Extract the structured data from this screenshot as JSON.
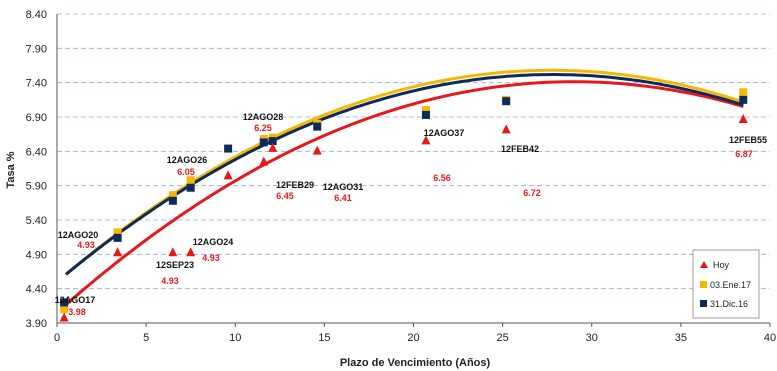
{
  "colors": {
    "hoy": "#e8181a",
    "ene17": "#f5b800",
    "dic16": "#0d2a5c",
    "grid": "#9aa6d6"
  },
  "chart_data": {
    "type": "scatter",
    "title": "",
    "xlabel": "Plazo de Vencimiento  (Años)",
    "ylabel": "Tasa %",
    "xlim": [
      0,
      40
    ],
    "ylim": [
      3.9,
      8.4
    ],
    "xticks": [
      0,
      5,
      10,
      15,
      20,
      25,
      30,
      35,
      40
    ],
    "yticks": [
      "3.90",
      "4.40",
      "4.90",
      "5.40",
      "5.90",
      "6.40",
      "6.90",
      "7.40",
      "7.90",
      "8.40"
    ],
    "grid": "horizontal dashed",
    "legend_position": "bottom-right",
    "series": [
      {
        "name": "Hoy",
        "marker": "triangle",
        "color": "#e8181a",
        "points": [
          {
            "x": 0.4,
            "y": 3.98
          },
          {
            "x": 3.4,
            "y": 4.93
          },
          {
            "x": 6.5,
            "y": 4.93
          },
          {
            "x": 7.5,
            "y": 4.93
          },
          {
            "x": 9.6,
            "y": 6.05
          },
          {
            "x": 11.6,
            "y": 6.25
          },
          {
            "x": 12.1,
            "y": 6.45
          },
          {
            "x": 14.6,
            "y": 6.41
          },
          {
            "x": 20.7,
            "y": 6.56
          },
          {
            "x": 25.2,
            "y": 6.72
          },
          {
            "x": 38.5,
            "y": 6.87
          }
        ],
        "trend": [
          4.05,
          0.232,
          -0.004
        ]
      },
      {
        "name": "03.Ene.17",
        "marker": "square",
        "color": "#f5b800",
        "points": [
          {
            "x": 0.4,
            "y": 4.1
          },
          {
            "x": 3.4,
            "y": 5.22
          },
          {
            "x": 6.5,
            "y": 5.76
          },
          {
            "x": 7.5,
            "y": 5.98
          },
          {
            "x": 11.6,
            "y": 6.58
          },
          {
            "x": 12.1,
            "y": 6.6
          },
          {
            "x": 14.6,
            "y": 6.8
          },
          {
            "x": 20.7,
            "y": 7.0
          },
          {
            "x": 25.2,
            "y": 7.15
          },
          {
            "x": 38.5,
            "y": 7.26
          }
        ],
        "trend": [
          4.5,
          0.222,
          -0.004
        ]
      },
      {
        "name": "31.Dic.16",
        "marker": "square",
        "color": "#0d2a5c",
        "points": [
          {
            "x": 0.4,
            "y": 4.2
          },
          {
            "x": 3.4,
            "y": 5.14
          },
          {
            "x": 6.5,
            "y": 5.68
          },
          {
            "x": 7.5,
            "y": 5.87
          },
          {
            "x": 9.6,
            "y": 6.44
          },
          {
            "x": 11.6,
            "y": 6.53
          },
          {
            "x": 12.1,
            "y": 6.55
          },
          {
            "x": 14.6,
            "y": 6.76
          },
          {
            "x": 20.7,
            "y": 6.93
          },
          {
            "x": 25.2,
            "y": 7.13
          },
          {
            "x": 38.5,
            "y": 7.15
          }
        ],
        "trend": [
          4.5,
          0.217,
          -0.0039
        ]
      }
    ],
    "bond_labels": [
      "12AGO17",
      "12AGO20",
      "12SEP23",
      "12AGO24",
      "12AGO26",
      "12AGO28",
      "12FEB29",
      "12AGO31",
      "12AGO37",
      "12FEB42",
      "12FEB55"
    ],
    "value_labels": [
      "3.98",
      "4.93",
      "4.93",
      "4.93",
      "6.05",
      "6.25",
      "6.45",
      "6.41",
      "6.56",
      "6.72",
      "6.87"
    ]
  }
}
